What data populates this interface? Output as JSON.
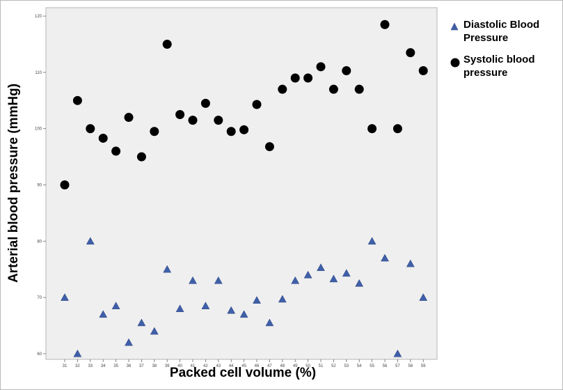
{
  "chart_data": {
    "type": "scatter",
    "title": "",
    "xlabel": "Packed cell volume (%)",
    "ylabel": "Arterial blood pressure (mmHg)",
    "x_ticks": [
      "31",
      "32",
      "33",
      "34",
      "35",
      "36",
      "37",
      "38",
      "39",
      "40",
      "41",
      "42",
      "43",
      "44",
      "45",
      "46",
      "47",
      "48",
      "49",
      "50",
      "51",
      "52",
      "53",
      "54",
      "55",
      "56",
      "57",
      "58",
      "59"
    ],
    "y_ticks": [
      60,
      70,
      80,
      90,
      100,
      110,
      120
    ],
    "ylim": [
      59,
      121.5
    ],
    "grid": false,
    "legend_position": "top-right outside",
    "series": [
      {
        "name": "Diastolic Blood Pressure",
        "marker": "triangle",
        "color": "#3f5fa8",
        "x": [
          31,
          32,
          33,
          34,
          35,
          36,
          37,
          38,
          39,
          40,
          41,
          42,
          43,
          44,
          45,
          46,
          47,
          48,
          49,
          50,
          51,
          52,
          53,
          54,
          55,
          56,
          57,
          58,
          59
        ],
        "y": [
          70,
          60,
          80,
          67,
          68.5,
          62,
          65.5,
          64,
          75,
          68,
          73,
          68.5,
          73,
          67.7,
          67,
          69.5,
          65.5,
          69.7,
          73,
          74,
          75.3,
          73.3,
          74.3,
          72.5,
          80,
          77,
          60,
          76,
          70
        ]
      },
      {
        "name": "Systolic blood pressure",
        "marker": "circle",
        "color": "#000000",
        "x": [
          31,
          32,
          33,
          34,
          35,
          36,
          37,
          38,
          39,
          40,
          41,
          42,
          43,
          44,
          45,
          46,
          47,
          48,
          49,
          50,
          51,
          52,
          53,
          54,
          55,
          56,
          57,
          58,
          59
        ],
        "y": [
          90,
          105,
          100,
          98.3,
          96,
          102,
          95,
          99.5,
          115,
          102.5,
          101.5,
          104.5,
          101.5,
          99.5,
          99.8,
          104.3,
          96.8,
          107,
          109,
          109,
          111,
          107,
          110.3,
          107,
          100,
          118.5,
          100,
          113.5,
          110.3
        ]
      }
    ]
  }
}
